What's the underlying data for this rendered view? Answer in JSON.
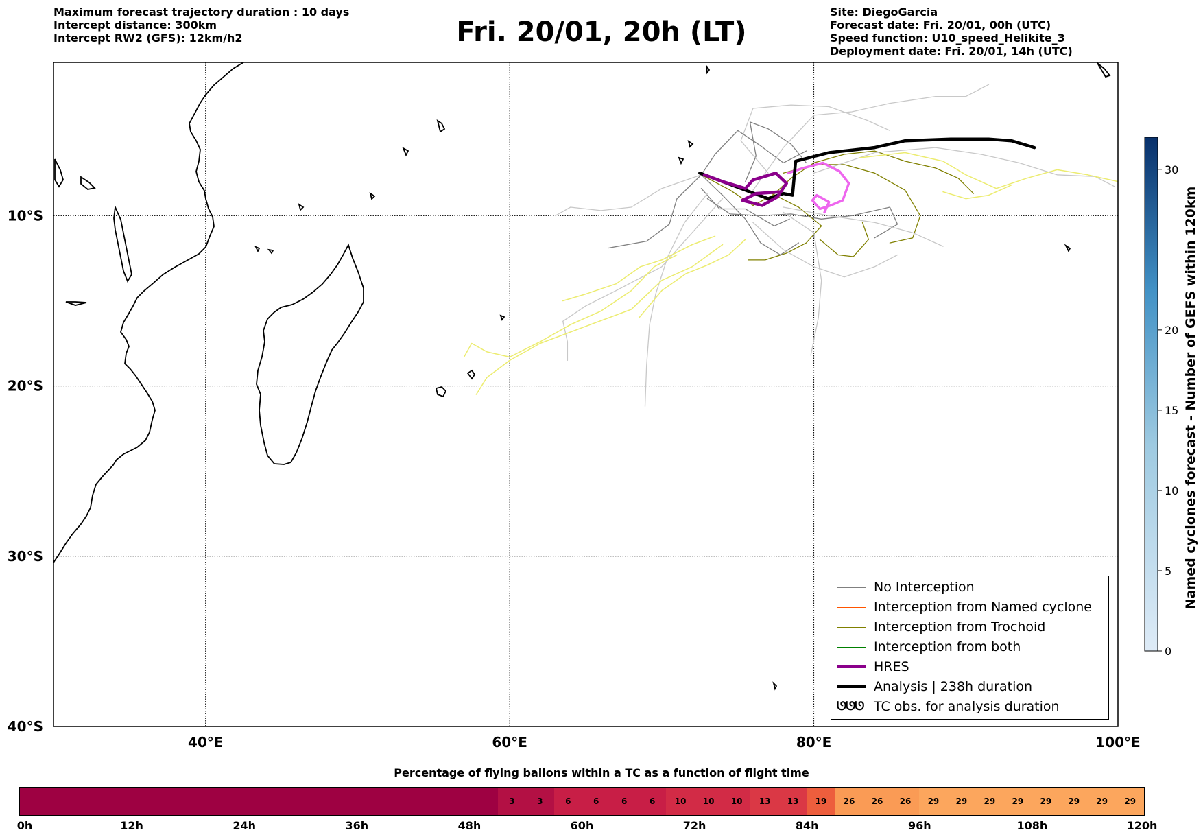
{
  "header_left": [
    "Maximum forecast trajectory duration : 10 days",
    "Intercept distance: 300km",
    "Intercept RW2 (GFS):  12km/h2"
  ],
  "header_right": [
    "Site: DiegoGarcia",
    "Forecast date: Fri. 20/01, 00h (UTC)",
    "Speed function: U10_speed_Helikite_3",
    "Deployment date: Fri. 20/01, 14h (UTC)"
  ],
  "title": "Fri. 20/01, 20h (LT)",
  "map": {
    "lon_ticks": [
      "40°E",
      "60°E",
      "80°E",
      "100°E"
    ],
    "lat_ticks": [
      "10°S",
      "20°S",
      "30°S",
      "40°S"
    ]
  },
  "legend": [
    {
      "label": "No Interception",
      "color": "#808080",
      "style": "thin"
    },
    {
      "label": "Interception from Named cyclone",
      "color": "#ff5500",
      "style": "thin"
    },
    {
      "label": "Interception from Trochoid",
      "color": "#808000",
      "style": "thin"
    },
    {
      "label": "Interception from both",
      "color": "#008000",
      "style": "thin"
    },
    {
      "label": "HRES",
      "color": "#8b008b",
      "style": "thick"
    },
    {
      "label": "Analysis | 238h duration",
      "color": "#000000",
      "style": "thick"
    },
    {
      "label": "TC obs. for analysis duration",
      "color": "#000000",
      "style": "symbol",
      "symbol": "ᘎᘎᘎ"
    }
  ],
  "colorbar": {
    "label": "Named cyclones forecast - Number of GEFS within 120km",
    "ticks": [
      "0",
      "5",
      "10",
      "15",
      "20",
      "30"
    ],
    "color_low": "#deebf7",
    "color_high": "#08306b"
  },
  "chart_data": {
    "type": "line",
    "title": "Fri. 20/01, 20h (LT)",
    "xlabel": "",
    "ylabel": "",
    "xlim": [
      30,
      100
    ],
    "ylim": [
      -40,
      -1
    ],
    "series": [
      {
        "name": "Analysis | 238h duration",
        "color": "#000000",
        "width": 4.5,
        "points": [
          [
            72.5,
            -7.5
          ],
          [
            74,
            -8.0
          ],
          [
            75.5,
            -8.5
          ],
          [
            77,
            -9.0
          ],
          [
            78,
            -8.7
          ],
          [
            78.6,
            -8.8
          ],
          [
            78.8,
            -6.8
          ],
          [
            81,
            -6.3
          ],
          [
            84,
            -6.0
          ],
          [
            86,
            -5.6
          ],
          [
            89,
            -5.5
          ],
          [
            91.5,
            -5.5
          ],
          [
            93,
            -5.6
          ],
          [
            94.5,
            -6.0
          ]
        ]
      },
      {
        "name": "HRES",
        "color": "#8b008b",
        "width": 4.5,
        "points": [
          [
            72.8,
            -7.6
          ],
          [
            74,
            -8.0
          ],
          [
            75.5,
            -8.4
          ],
          [
            76,
            -7.9
          ],
          [
            77.5,
            -7.5
          ],
          [
            78.2,
            -8.1
          ],
          [
            77.6,
            -8.9
          ],
          [
            76.6,
            -9.4
          ],
          [
            75.3,
            -9.1
          ],
          [
            76.2,
            -8.7
          ],
          [
            77.8,
            -8.6
          ]
        ]
      },
      {
        "name": "",
        "color": "#ee66ee",
        "width": 3.5,
        "points": [
          [
            78.3,
            -7.5
          ],
          [
            79.3,
            -7.2
          ],
          [
            80.6,
            -6.9
          ],
          [
            81.7,
            -7.4
          ],
          [
            82.3,
            -8.1
          ],
          [
            81.9,
            -9.1
          ],
          [
            81.1,
            -9.4
          ],
          [
            80.4,
            -9.6
          ],
          [
            79.9,
            -9.1
          ],
          [
            80.2,
            -8.8
          ],
          [
            81.0,
            -9.2
          ],
          [
            80.7,
            -9.8
          ]
        ]
      },
      {
        "name": "",
        "color": "#ecec70",
        "width": 1.5,
        "points": [
          [
            57.8,
            -20.5
          ],
          [
            58.5,
            -19.5
          ],
          [
            60,
            -18.5
          ],
          [
            62,
            -17.5
          ],
          [
            65,
            -16.5
          ],
          [
            68,
            -15.5
          ],
          [
            70,
            -13.8
          ],
          [
            72,
            -13.0
          ],
          [
            74,
            -11.7
          ]
        ]
      },
      {
        "name": "",
        "color": "#ecec70",
        "width": 1.5,
        "points": [
          [
            57,
            -18.3
          ],
          [
            57.5,
            -17.5
          ],
          [
            58.5,
            -18
          ],
          [
            60,
            -18.3
          ],
          [
            62,
            -17.4
          ],
          [
            64,
            -16.4
          ],
          [
            66,
            -15.6
          ],
          [
            68,
            -14.4
          ],
          [
            69.5,
            -13.0
          ],
          [
            71,
            -12.3
          ]
        ]
      },
      {
        "name": "",
        "color": "#ecec70",
        "width": 1.5,
        "points": [
          [
            63.5,
            -15.0
          ],
          [
            65,
            -14.6
          ],
          [
            67,
            -14.0
          ],
          [
            68.6,
            -13.0
          ],
          [
            70,
            -12.6
          ],
          [
            72,
            -11.7
          ],
          [
            73.5,
            -11.2
          ]
        ]
      },
      {
        "name": "",
        "color": "#ecec70",
        "width": 1.5,
        "points": [
          [
            68.5,
            -16.0
          ],
          [
            70,
            -14.4
          ],
          [
            71.6,
            -13.4
          ],
          [
            73,
            -12.9
          ],
          [
            74.4,
            -12.3
          ],
          [
            75.5,
            -11.4
          ]
        ]
      },
      {
        "name": "",
        "color": "#ecec70",
        "width": 1.5,
        "points": [
          [
            83,
            -6.6
          ],
          [
            86,
            -6.3
          ],
          [
            88.5,
            -6.8
          ],
          [
            90,
            -7.6
          ],
          [
            92,
            -8.4
          ],
          [
            94,
            -7.8
          ],
          [
            96,
            -7.3
          ],
          [
            98,
            -7.6
          ],
          [
            100,
            -8.0
          ]
        ]
      },
      {
        "name": "",
        "color": "#ecec70",
        "width": 1.5,
        "points": [
          [
            88.5,
            -8.6
          ],
          [
            90,
            -9.0
          ],
          [
            91.5,
            -8.8
          ],
          [
            93,
            -8.2
          ]
        ]
      },
      {
        "name": "",
        "color": "#808000",
        "width": 1.3,
        "points": [
          [
            72.6,
            -7.6
          ],
          [
            74.5,
            -8.5
          ],
          [
            76,
            -9.4
          ],
          [
            77.3,
            -8.8
          ],
          [
            78.5,
            -7.8
          ],
          [
            80,
            -6.9
          ],
          [
            82,
            -6.4
          ],
          [
            84,
            -6.2
          ],
          [
            86,
            -6.8
          ],
          [
            88,
            -7.2
          ],
          [
            89.5,
            -7.8
          ],
          [
            90.5,
            -8.7
          ]
        ]
      },
      {
        "name": "",
        "color": "#808000",
        "width": 1.3,
        "points": [
          [
            77,
            -8.6
          ],
          [
            79,
            -9.5
          ],
          [
            80.5,
            -10.6
          ],
          [
            79.5,
            -11.6
          ],
          [
            78.2,
            -12.2
          ],
          [
            76.8,
            -12.6
          ],
          [
            75.7,
            -12.6
          ]
        ]
      },
      {
        "name": "",
        "color": "#808000",
        "width": 1.3,
        "points": [
          [
            78,
            -7.5
          ],
          [
            80,
            -7.0
          ],
          [
            82,
            -7.0
          ],
          [
            84,
            -7.5
          ],
          [
            86,
            -8.5
          ],
          [
            87,
            -10.0
          ],
          [
            86.5,
            -11.3
          ],
          [
            85,
            -11.6
          ]
        ]
      },
      {
        "name": "",
        "color": "#808000",
        "width": 1.3,
        "points": [
          [
            80.4,
            -11.4
          ],
          [
            81.6,
            -12.3
          ],
          [
            82.6,
            -12.4
          ],
          [
            83.6,
            -11.4
          ],
          [
            83.2,
            -10.4
          ]
        ]
      },
      {
        "name": "",
        "color": "#808080",
        "width": 1.3,
        "points": [
          [
            72.6,
            -7.6
          ],
          [
            71,
            -9.0
          ],
          [
            70.5,
            -10.5
          ],
          [
            69,
            -11.5
          ],
          [
            66.5,
            -11.9
          ]
        ]
      },
      {
        "name": "",
        "color": "#808080",
        "width": 1.3,
        "points": [
          [
            72.6,
            -7.6
          ],
          [
            74,
            -8.8
          ],
          [
            75.5,
            -10.2
          ],
          [
            76.5,
            -11.6
          ],
          [
            77.8,
            -12.3
          ],
          [
            79,
            -11.6
          ]
        ]
      },
      {
        "name": "",
        "color": "#808080",
        "width": 1.3,
        "points": [
          [
            72.6,
            -7.6
          ],
          [
            73.5,
            -6.4
          ],
          [
            75,
            -5.0
          ],
          [
            76.5,
            -5.9
          ],
          [
            78,
            -6.9
          ],
          [
            79.5,
            -6.2
          ]
        ]
      },
      {
        "name": "",
        "color": "#808080",
        "width": 1.3,
        "points": [
          [
            73,
            -9.0
          ],
          [
            74.5,
            -9.9
          ],
          [
            76.5,
            -10.0
          ],
          [
            78.5,
            -9.9
          ],
          [
            80.5,
            -10.2
          ],
          [
            82.5,
            -10.0
          ],
          [
            85,
            -9.5
          ],
          [
            85.5,
            -10.5
          ],
          [
            84,
            -11.3
          ]
        ]
      },
      {
        "name": "",
        "color": "#808080",
        "width": 1.3,
        "points": [
          [
            72.6,
            -8.4
          ],
          [
            73.8,
            -9.6
          ],
          [
            75.5,
            -9.6
          ],
          [
            77.4,
            -10.6
          ],
          [
            78.4,
            -10.2
          ]
        ]
      },
      {
        "name": "",
        "color": "#808080",
        "width": 1.3,
        "points": [
          [
            75.5,
            -8.0
          ],
          [
            76.2,
            -6.5
          ],
          [
            75.8,
            -4.5
          ],
          [
            77.0,
            -4.9
          ],
          [
            78.5,
            -5.8
          ],
          [
            79.5,
            -6.9
          ]
        ]
      },
      {
        "name": "",
        "color": "#c8c8c8",
        "width": 1.3,
        "points": [
          [
            72.6,
            -7.6
          ],
          [
            70,
            -8.4
          ],
          [
            68,
            -9.5
          ],
          [
            66,
            -9.7
          ],
          [
            64,
            -9.5
          ],
          [
            63.0,
            -10.0
          ]
        ]
      },
      {
        "name": "",
        "color": "#c8c8c8",
        "width": 1.3,
        "points": [
          [
            73,
            -8.7
          ],
          [
            71.5,
            -10.4
          ],
          [
            70.4,
            -12.4
          ],
          [
            69.6,
            -14.6
          ],
          [
            69.2,
            -16.4
          ],
          [
            69.0,
            -18.8
          ],
          [
            68.9,
            -21.2
          ]
        ]
      },
      {
        "name": "",
        "color": "#c8c8c8",
        "width": 1.3,
        "points": [
          [
            74,
            -9.0
          ],
          [
            72,
            -11.0
          ],
          [
            70,
            -13.0
          ],
          [
            67,
            -14.4
          ],
          [
            65,
            -15.3
          ],
          [
            63.5,
            -16.2
          ],
          [
            63.8,
            -17.4
          ],
          [
            63.8,
            -18.5
          ]
        ]
      },
      {
        "name": "",
        "color": "#c8c8c8",
        "width": 1.3,
        "points": [
          [
            76,
            -10.4
          ],
          [
            78,
            -12.0
          ],
          [
            80,
            -13.0
          ],
          [
            82,
            -13.6
          ],
          [
            84,
            -13.0
          ],
          [
            85.5,
            -12.3
          ]
        ]
      },
      {
        "name": "",
        "color": "#c8c8c8",
        "width": 1.3,
        "points": [
          [
            78,
            -9.8
          ],
          [
            80,
            -11.0
          ],
          [
            80.5,
            -13.8
          ],
          [
            80.3,
            -16.0
          ],
          [
            79.8,
            -18.2
          ]
        ]
      },
      {
        "name": "",
        "color": "#c8c8c8",
        "width": 1.3,
        "points": [
          [
            76,
            -8.5
          ],
          [
            78,
            -6.0
          ],
          [
            80,
            -4.1
          ],
          [
            82.5,
            -3.9
          ],
          [
            85,
            -3.4
          ],
          [
            88,
            -3.0
          ],
          [
            90,
            -3.0
          ],
          [
            91.5,
            -2.3
          ]
        ]
      },
      {
        "name": "",
        "color": "#c8c8c8",
        "width": 1.3,
        "points": [
          [
            77,
            -7.5
          ],
          [
            75.2,
            -5.6
          ],
          [
            76.0,
            -3.7
          ],
          [
            78.5,
            -3.5
          ],
          [
            81,
            -3.6
          ],
          [
            83.5,
            -4.4
          ],
          [
            85,
            -5.0
          ]
        ]
      },
      {
        "name": "",
        "color": "#c8c8c8",
        "width": 1.3,
        "points": [
          [
            80,
            -7.5
          ],
          [
            84,
            -6.3
          ],
          [
            88,
            -6.0
          ],
          [
            91,
            -6.4
          ],
          [
            93.5,
            -6.9
          ],
          [
            96,
            -7.6
          ],
          [
            98.5,
            -7.7
          ],
          [
            99.8,
            -8.3
          ]
        ]
      },
      {
        "name": "",
        "color": "#c8c8c8",
        "width": 1.3,
        "points": [
          [
            78,
            -9.5
          ],
          [
            81,
            -10.0
          ],
          [
            84,
            -10.4
          ],
          [
            86.5,
            -11.0
          ],
          [
            88.5,
            -11.8
          ]
        ]
      }
    ]
  },
  "colorbar_data": {
    "cmap": "Blues",
    "range": [
      0,
      32
    ]
  },
  "bottom": {
    "title": "Percentage of flying ballons within a TC as a function of flight time",
    "time_labels": [
      "0h",
      "12h",
      "24h",
      "36h",
      "48h",
      "60h",
      "72h",
      "84h",
      "96h",
      "108h",
      "120h"
    ],
    "pct_values": [
      0,
      0,
      0,
      0,
      0,
      0,
      0,
      0,
      0,
      0,
      0,
      0,
      0,
      0,
      0,
      0,
      0,
      3,
      3,
      6,
      6,
      6,
      6,
      10,
      10,
      10,
      13,
      13,
      19,
      26,
      26,
      26,
      29,
      29,
      29,
      29,
      29,
      29,
      29,
      29
    ],
    "pct_labels": [
      "",
      "",
      "",
      "",
      "",
      "",
      "",
      "",
      "",
      "",
      "",
      "",
      "",
      "",
      "",
      "",
      "",
      "3",
      "3",
      "6",
      "6",
      "6",
      "6",
      "10",
      "10",
      "10",
      "13",
      "13",
      "19",
      "26",
      "26",
      "26",
      "29",
      "29",
      "29",
      "29",
      "29",
      "29",
      "29",
      "29"
    ]
  }
}
